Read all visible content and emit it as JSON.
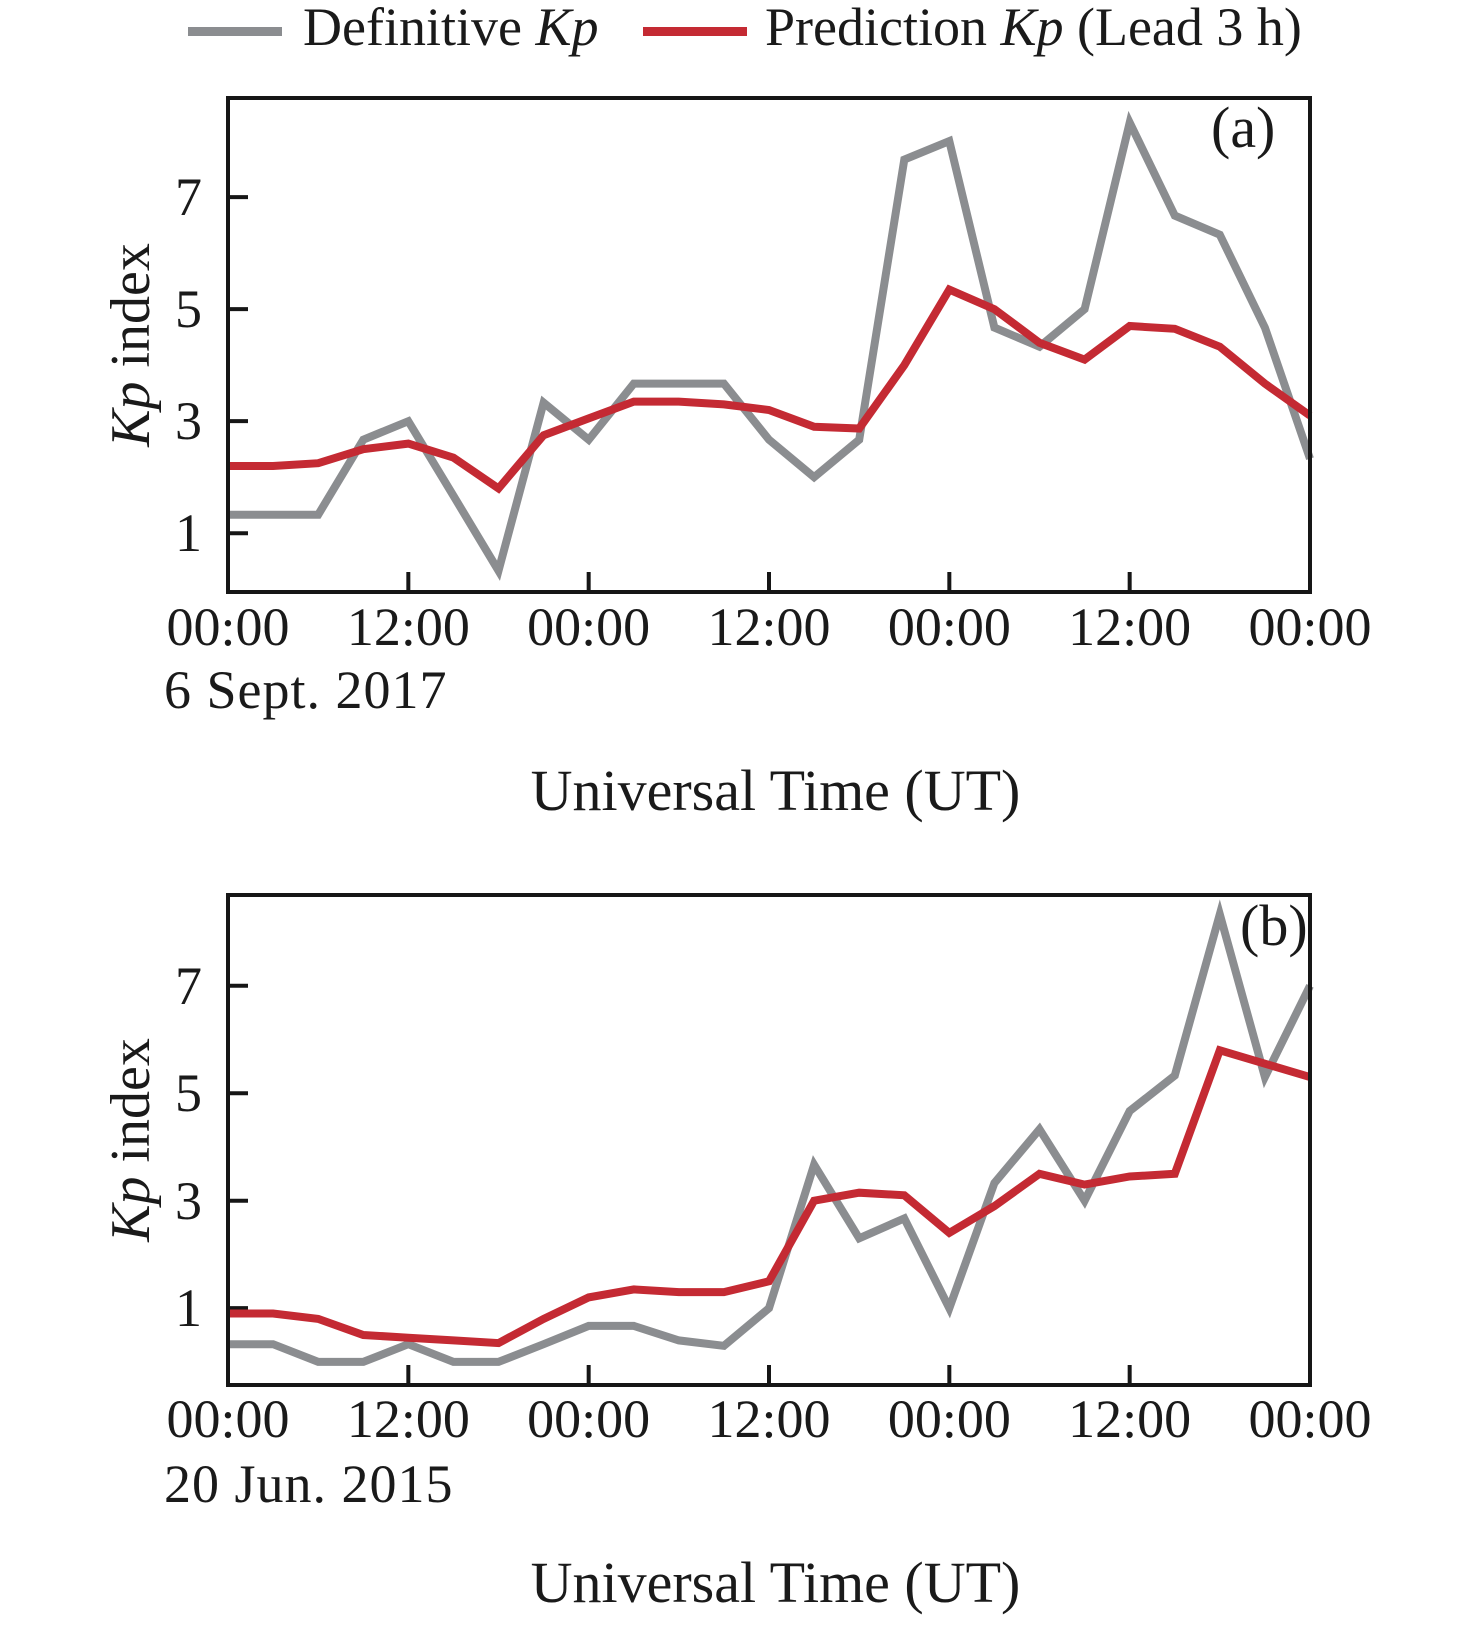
{
  "colors": {
    "definitive": "#8b8d90",
    "prediction": "#c42a33",
    "axis": "#161616",
    "text": "#1a1a1a"
  },
  "legend": {
    "items": [
      {
        "name": "definitive",
        "label_prefix": "Definitive ",
        "label_italic": "Kp",
        "label_suffix": "",
        "color_key": "definitive"
      },
      {
        "name": "prediction",
        "label_prefix": "Prediction ",
        "label_italic": "Kp",
        "label_suffix": " (Lead 3 h)",
        "color_key": "prediction"
      }
    ]
  },
  "chart_data": [
    {
      "type": "line",
      "panel_label": "(a)",
      "start_date": "6 Sept. 2017",
      "xlabel": "Universal Time (UT)",
      "ylabel_italic": "Kp",
      "ylabel_rest": " index",
      "xlim": [
        0,
        72
      ],
      "ylim": [
        -0.05,
        8.77
      ],
      "x_hours": [
        0,
        3,
        6,
        9,
        12,
        15,
        18,
        21,
        24,
        27,
        30,
        33,
        36,
        39,
        42,
        45,
        48,
        51,
        54,
        57,
        60,
        63,
        66,
        69,
        72
      ],
      "x_tick_hours": [
        0,
        12,
        24,
        36,
        48,
        60,
        72
      ],
      "x_tick_labels": [
        "00:00",
        "12:00",
        "00:00",
        "12:00",
        "00:00",
        "12:00",
        "00:00"
      ],
      "y_ticks": [
        1,
        3,
        5,
        7
      ],
      "grid": false,
      "series": [
        {
          "name": "Definitive Kp",
          "color_key": "definitive",
          "values": [
            1.33,
            1.33,
            1.33,
            2.67,
            3.0,
            1.67,
            0.33,
            3.33,
            2.67,
            3.67,
            3.67,
            3.67,
            2.67,
            2.0,
            2.67,
            7.67,
            8.0,
            4.67,
            4.33,
            5.0,
            8.33,
            6.67,
            6.33,
            4.67,
            2.33
          ]
        },
        {
          "name": "Prediction Kp (Lead 3 h)",
          "color_key": "prediction",
          "values": [
            2.2,
            2.2,
            2.25,
            2.5,
            2.6,
            2.35,
            1.8,
            2.75,
            3.05,
            3.35,
            3.35,
            3.3,
            3.2,
            2.9,
            2.87,
            4.0,
            5.35,
            5.0,
            4.4,
            4.1,
            4.7,
            4.65,
            4.33,
            3.67,
            3.1
          ]
        }
      ]
    },
    {
      "type": "line",
      "panel_label": "(b)",
      "start_date": "20 Jun. 2015",
      "xlabel": "Universal Time (UT)",
      "ylabel_italic": "Kp",
      "ylabel_rest": " index",
      "xlim": [
        0,
        72
      ],
      "ylim": [
        -0.43,
        8.69
      ],
      "x_hours": [
        0,
        3,
        6,
        9,
        12,
        15,
        18,
        21,
        24,
        27,
        30,
        33,
        36,
        39,
        42,
        45,
        48,
        51,
        54,
        57,
        60,
        63,
        66,
        69,
        72
      ],
      "x_tick_hours": [
        0,
        12,
        24,
        36,
        48,
        60,
        72
      ],
      "x_tick_labels": [
        "00:00",
        "12:00",
        "00:00",
        "12:00",
        "00:00",
        "12:00",
        "00:00"
      ],
      "y_ticks": [
        1,
        3,
        5,
        7
      ],
      "grid": false,
      "series": [
        {
          "name": "Definitive Kp",
          "color_key": "definitive",
          "values": [
            0.33,
            0.33,
            0.0,
            0.0,
            0.33,
            0.0,
            0.0,
            0.33,
            0.67,
            0.67,
            0.4,
            0.3,
            1.0,
            3.67,
            2.3,
            2.67,
            1.0,
            3.33,
            4.33,
            3.0,
            4.67,
            5.33,
            8.33,
            5.3,
            7.0
          ]
        },
        {
          "name": "Prediction Kp (Lead 3 h)",
          "color_key": "prediction",
          "values": [
            0.9,
            0.9,
            0.8,
            0.5,
            0.45,
            0.4,
            0.35,
            0.8,
            1.2,
            1.35,
            1.3,
            1.3,
            1.5,
            3.0,
            3.15,
            3.1,
            2.4,
            2.9,
            3.5,
            3.3,
            3.45,
            3.5,
            5.8,
            5.55,
            5.3
          ]
        }
      ]
    }
  ]
}
